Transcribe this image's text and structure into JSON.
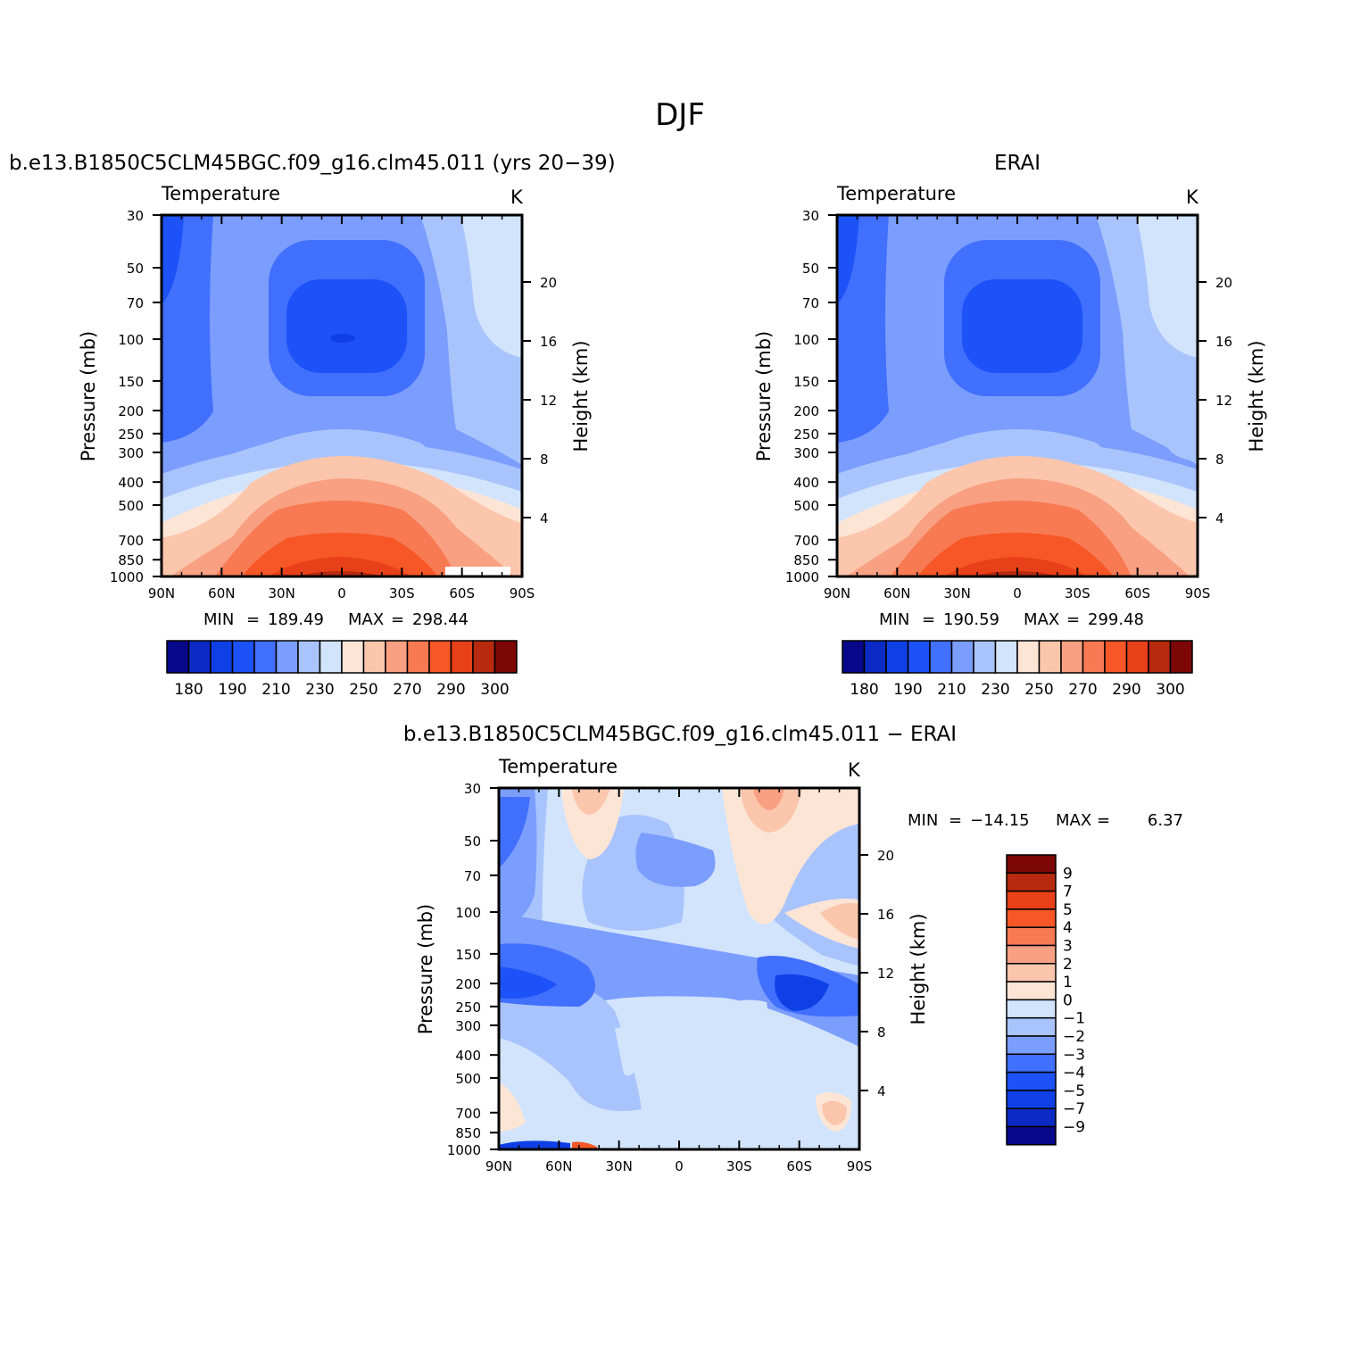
{
  "figure_title": "DJF",
  "colors": {
    "abs": [
      "#08088a",
      "#0b2bc4",
      "#0e40e6",
      "#1c52f7",
      "#416ffe",
      "#7b9dfe",
      "#a9c4fd",
      "#d2e4fc",
      "#fde5d6",
      "#fbc6ac",
      "#f9a082",
      "#f87a53",
      "#f75726",
      "#e84019",
      "#b72a0e",
      "#7d0707"
    ],
    "diff": [
      "#08088a",
      "#0b2bc4",
      "#0e40e6",
      "#1c52f7",
      "#416ffe",
      "#7b9dfe",
      "#a9c4fd",
      "#d2e4fc",
      "#fde5d6",
      "#fbc6ac",
      "#f9a082",
      "#f87a53",
      "#f75726",
      "#e84019",
      "#b72a0e",
      "#7d0707"
    ]
  },
  "chart_data": [
    {
      "type": "heatmap",
      "title": "b.e13.B1850C5CLM45BGC.f09_g16.clm45.011 (yrs 20−39)",
      "left_label": "Temperature",
      "right_label": "K",
      "ylabel": "Pressure (mb)",
      "y2label": "Height (km)",
      "x_ticks": [
        "90N",
        "60N",
        "30N",
        "0",
        "30S",
        "60S",
        "90S"
      ],
      "y_ticks": [
        "30",
        "50",
        "70",
        "100",
        "150",
        "200",
        "250",
        "300",
        "400",
        "500",
        "700",
        "850",
        "1000"
      ],
      "y2_ticks": [
        "20",
        "16",
        "12",
        "8",
        "4"
      ],
      "stats": {
        "min_label": "MIN",
        "min": "189.49",
        "max_label": "MAX",
        "max": "298.44"
      },
      "colorbar_labels": [
        "180",
        "190",
        "210",
        "230",
        "250",
        "270",
        "290",
        "300"
      ],
      "levels": [
        180,
        185,
        190,
        200,
        210,
        220,
        230,
        240,
        250,
        260,
        270,
        280,
        290,
        295,
        300
      ]
    },
    {
      "type": "heatmap",
      "title": "ERAI",
      "left_label": "Temperature",
      "right_label": "K",
      "ylabel": "Pressure (mb)",
      "y2label": "Height (km)",
      "x_ticks": [
        "90N",
        "60N",
        "30N",
        "0",
        "30S",
        "60S",
        "90S"
      ],
      "y_ticks": [
        "30",
        "50",
        "70",
        "100",
        "150",
        "200",
        "250",
        "300",
        "400",
        "500",
        "700",
        "850",
        "1000"
      ],
      "y2_ticks": [
        "20",
        "16",
        "12",
        "8",
        "4"
      ],
      "stats": {
        "min_label": "MIN",
        "min": "190.59",
        "max_label": "MAX",
        "max": "299.48"
      },
      "colorbar_labels": [
        "180",
        "190",
        "210",
        "230",
        "250",
        "270",
        "290",
        "300"
      ],
      "levels": [
        180,
        185,
        190,
        200,
        210,
        220,
        230,
        240,
        250,
        260,
        270,
        280,
        290,
        295,
        300
      ]
    },
    {
      "type": "heatmap",
      "title": "b.e13.B1850C5CLM45BGC.f09_g16.clm45.011 − ERAI",
      "left_label": "Temperature",
      "right_label": "K",
      "ylabel": "Pressure (mb)",
      "y2label": "Height (km)",
      "x_ticks": [
        "90N",
        "60N",
        "30N",
        "0",
        "30S",
        "60S",
        "90S"
      ],
      "y_ticks": [
        "30",
        "50",
        "70",
        "100",
        "150",
        "200",
        "250",
        "300",
        "400",
        "500",
        "700",
        "850",
        "1000"
      ],
      "y2_ticks": [
        "20",
        "16",
        "12",
        "8",
        "4"
      ],
      "stats": {
        "min_label": "MIN",
        "min": "−14.15",
        "max_label": "MAX",
        "max": "6.37"
      },
      "colorbar_labels": [
        "9",
        "7",
        "5",
        "4",
        "3",
        "2",
        "1",
        "0",
        "−1",
        "−2",
        "−3",
        "−4",
        "−5",
        "−7",
        "−9"
      ],
      "levels": [
        -9,
        -7,
        -5,
        -4,
        -3,
        -2,
        -1,
        0,
        1,
        2,
        3,
        4,
        5,
        7,
        9
      ]
    }
  ]
}
